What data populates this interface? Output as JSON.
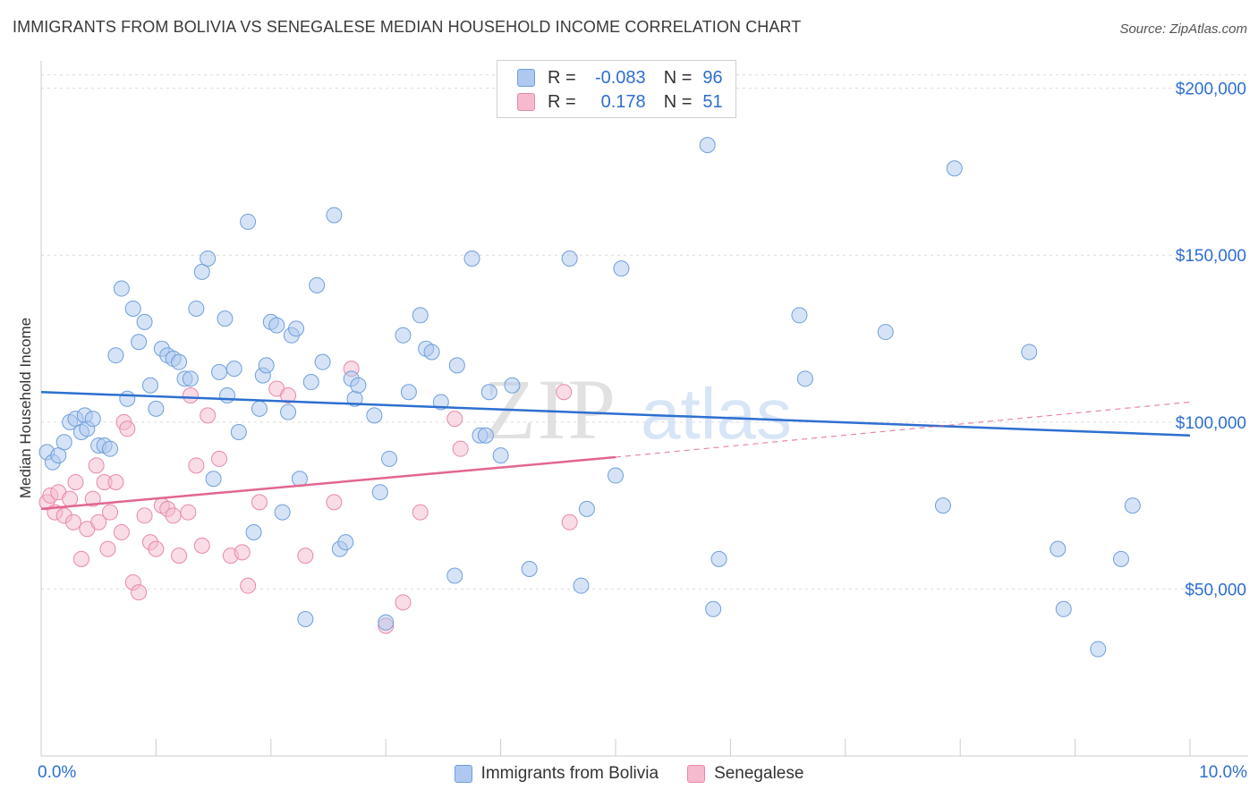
{
  "header": {
    "title": "IMMIGRANTS FROM BOLIVIA VS SENEGALESE MEDIAN HOUSEHOLD INCOME CORRELATION CHART",
    "source": "Source: ZipAtlas.com"
  },
  "watermark": "ZIPatlas",
  "legend_top": {
    "rows": [
      {
        "r_label": "R =",
        "r_value": "-0.083",
        "n_label": "N =",
        "n_value": "96"
      },
      {
        "r_label": "R =",
        "r_value": "0.178",
        "n_label": "N =",
        "n_value": "51"
      }
    ]
  },
  "colors": {
    "blue_fill": "#aec8f0",
    "blue_stroke": "#6f9fdc",
    "blue_line": "#2d6fd1",
    "pink_fill": "#f6b9cd",
    "pink_stroke": "#e889aa",
    "pink_line": "#e2668f",
    "axis_text": "#2d6fd1",
    "grid": "#dcdcdc"
  },
  "chart_data": {
    "type": "scatter",
    "xlabel": "",
    "ylabel": "Median Household Income",
    "xlim": [
      0,
      10
    ],
    "ylim": [
      0,
      205000
    ],
    "x_tick_labels": [
      "0.0%",
      "10.0%"
    ],
    "y_ticks": [
      50000,
      100000,
      150000,
      200000
    ],
    "y_tick_labels": [
      "$50,000",
      "$100,000",
      "$150,000",
      "$200,000"
    ],
    "grid": true,
    "legend_placement": "bottom",
    "series": [
      {
        "name": "Immigrants from Bolivia",
        "color": "#aec8f0",
        "trend": {
          "x": [
            0,
            10
          ],
          "y": [
            109000,
            96000
          ],
          "style": "solid"
        },
        "points": [
          [
            0.05,
            91000
          ],
          [
            0.1,
            88000
          ],
          [
            0.15,
            90000
          ],
          [
            0.2,
            94000
          ],
          [
            0.25,
            100000
          ],
          [
            0.3,
            101000
          ],
          [
            0.35,
            97000
          ],
          [
            0.38,
            102000
          ],
          [
            0.4,
            98000
          ],
          [
            0.45,
            101000
          ],
          [
            0.5,
            93000
          ],
          [
            0.55,
            93000
          ],
          [
            0.6,
            92000
          ],
          [
            0.65,
            120000
          ],
          [
            0.7,
            140000
          ],
          [
            0.75,
            107000
          ],
          [
            0.8,
            134000
          ],
          [
            0.85,
            124000
          ],
          [
            0.9,
            130000
          ],
          [
            0.95,
            111000
          ],
          [
            1.0,
            104000
          ],
          [
            1.05,
            122000
          ],
          [
            1.1,
            120000
          ],
          [
            1.15,
            119000
          ],
          [
            1.2,
            118000
          ],
          [
            1.25,
            113000
          ],
          [
            1.3,
            113000
          ],
          [
            1.35,
            134000
          ],
          [
            1.4,
            145000
          ],
          [
            1.45,
            149000
          ],
          [
            1.5,
            83000
          ],
          [
            1.55,
            115000
          ],
          [
            1.6,
            131000
          ],
          [
            1.62,
            108000
          ],
          [
            1.68,
            116000
          ],
          [
            1.72,
            97000
          ],
          [
            1.8,
            160000
          ],
          [
            1.85,
            67000
          ],
          [
            1.9,
            104000
          ],
          [
            1.93,
            114000
          ],
          [
            1.96,
            117000
          ],
          [
            2.0,
            130000
          ],
          [
            2.05,
            129000
          ],
          [
            2.1,
            73000
          ],
          [
            2.15,
            103000
          ],
          [
            2.18,
            126000
          ],
          [
            2.22,
            128000
          ],
          [
            2.25,
            83000
          ],
          [
            2.3,
            41000
          ],
          [
            2.35,
            112000
          ],
          [
            2.4,
            141000
          ],
          [
            2.45,
            118000
          ],
          [
            2.55,
            162000
          ],
          [
            2.6,
            62000
          ],
          [
            2.65,
            64000
          ],
          [
            2.7,
            113000
          ],
          [
            2.73,
            107000
          ],
          [
            2.76,
            111000
          ],
          [
            2.9,
            102000
          ],
          [
            2.95,
            79000
          ],
          [
            3.0,
            40000
          ],
          [
            3.03,
            89000
          ],
          [
            3.15,
            126000
          ],
          [
            3.2,
            109000
          ],
          [
            3.3,
            132000
          ],
          [
            3.35,
            122000
          ],
          [
            3.4,
            121000
          ],
          [
            3.48,
            106000
          ],
          [
            3.6,
            54000
          ],
          [
            3.62,
            117000
          ],
          [
            3.75,
            149000
          ],
          [
            3.82,
            96000
          ],
          [
            3.87,
            96000
          ],
          [
            3.9,
            109000
          ],
          [
            4.0,
            90000
          ],
          [
            4.1,
            111000
          ],
          [
            4.25,
            56000
          ],
          [
            4.6,
            149000
          ],
          [
            4.7,
            51000
          ],
          [
            4.75,
            74000
          ],
          [
            5.0,
            84000
          ],
          [
            5.05,
            146000
          ],
          [
            5.8,
            183000
          ],
          [
            5.85,
            44000
          ],
          [
            5.9,
            59000
          ],
          [
            6.6,
            132000
          ],
          [
            6.65,
            113000
          ],
          [
            7.35,
            127000
          ],
          [
            7.85,
            75000
          ],
          [
            7.95,
            176000
          ],
          [
            8.6,
            121000
          ],
          [
            8.85,
            62000
          ],
          [
            8.9,
            44000
          ],
          [
            9.2,
            32000
          ],
          [
            9.4,
            59000
          ],
          [
            9.5,
            75000
          ]
        ]
      },
      {
        "name": "Senegalese",
        "color": "#f6b9cd",
        "trend": {
          "x": [
            0,
            5
          ],
          "y": [
            74000,
            89500
          ],
          "dashed_to": [
            10,
            106000
          ]
        },
        "points": [
          [
            0.05,
            76000
          ],
          [
            0.08,
            78000
          ],
          [
            0.12,
            73000
          ],
          [
            0.15,
            79000
          ],
          [
            0.2,
            72000
          ],
          [
            0.25,
            77000
          ],
          [
            0.28,
            70000
          ],
          [
            0.3,
            82000
          ],
          [
            0.35,
            59000
          ],
          [
            0.4,
            68000
          ],
          [
            0.45,
            77000
          ],
          [
            0.48,
            87000
          ],
          [
            0.5,
            70000
          ],
          [
            0.55,
            82000
          ],
          [
            0.58,
            62000
          ],
          [
            0.6,
            73000
          ],
          [
            0.65,
            82000
          ],
          [
            0.7,
            67000
          ],
          [
            0.72,
            100000
          ],
          [
            0.75,
            98000
          ],
          [
            0.8,
            52000
          ],
          [
            0.85,
            49000
          ],
          [
            0.9,
            72000
          ],
          [
            0.95,
            64000
          ],
          [
            1.0,
            62000
          ],
          [
            1.05,
            75000
          ],
          [
            1.1,
            74000
          ],
          [
            1.15,
            72000
          ],
          [
            1.2,
            60000
          ],
          [
            1.28,
            73000
          ],
          [
            1.3,
            108000
          ],
          [
            1.35,
            87000
          ],
          [
            1.4,
            63000
          ],
          [
            1.45,
            102000
          ],
          [
            1.55,
            89000
          ],
          [
            1.65,
            60000
          ],
          [
            1.75,
            61000
          ],
          [
            1.8,
            51000
          ],
          [
            1.9,
            76000
          ],
          [
            2.05,
            110000
          ],
          [
            2.15,
            108000
          ],
          [
            2.3,
            60000
          ],
          [
            2.55,
            76000
          ],
          [
            2.7,
            116000
          ],
          [
            3.0,
            39000
          ],
          [
            3.15,
            46000
          ],
          [
            3.3,
            73000
          ],
          [
            3.6,
            101000
          ],
          [
            3.65,
            92000
          ],
          [
            4.55,
            109000
          ],
          [
            4.6,
            70000
          ]
        ]
      }
    ]
  }
}
